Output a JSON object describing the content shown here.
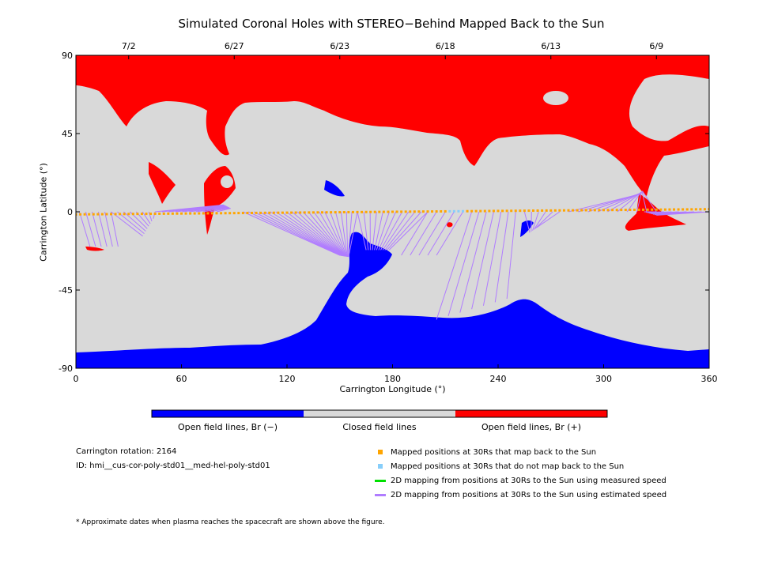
{
  "chart_data": {
    "type": "heatmap",
    "title": "Simulated Coronal Holes with STEREO−Behind Mapped Back to the Sun",
    "xlabel": "Carrington Longitude (°)",
    "ylabel": "Carrington Latitude (°)",
    "xlim": [
      0,
      360
    ],
    "ylim": [
      -90,
      90
    ],
    "x_ticks": [
      0,
      60,
      120,
      180,
      240,
      300,
      360
    ],
    "y_ticks": [
      90,
      45,
      0,
      -45,
      -90
    ],
    "top_axis_dates": [
      {
        "label": "7/2",
        "lon": 30
      },
      {
        "label": "6/27",
        "lon": 90
      },
      {
        "label": "6/23",
        "lon": 150
      },
      {
        "label": "6/18",
        "lon": 210
      },
      {
        "label": "6/13",
        "lon": 270
      },
      {
        "label": "6/9",
        "lon": 330
      }
    ],
    "colors": {
      "open_negative": "#0000ff",
      "closed": "#d9d9d9",
      "open_positive": "#ff0000",
      "mapped": "#ffa500",
      "not_mapped": "#87cefa",
      "measured_speed": "#00e000",
      "estimated_speed": "#b07cff"
    },
    "colorbar_labels": [
      "Open field lines, Br (−)",
      "Closed field lines",
      "Open field lines, Br (+)"
    ],
    "spacecraft_track": {
      "lon_range": [
        0,
        360
      ],
      "lat_range": [
        -1.5,
        1.5
      ],
      "not_mapped_lon_range": [
        212,
        220
      ]
    }
  },
  "info": {
    "rotation": "Carrington rotation: 2164",
    "id": "ID: hmi__cus-cor-poly-std01__med-hel-poly-std01",
    "footnote": "* Approximate dates when plasma reaches the spacecraft are shown above the figure."
  },
  "legend": [
    {
      "label": "Mapped positions at 30Rs that map back to the Sun",
      "kind": "square",
      "color": "#ffa500"
    },
    {
      "label": "Mapped positions at 30Rs that do not map back to the Sun",
      "kind": "square",
      "color": "#87cefa"
    },
    {
      "label": "2D mapping from positions at 30Rs to the Sun using measured speed",
      "kind": "line",
      "color": "#00e000"
    },
    {
      "label": "2D mapping from positions at 30Rs to the Sun using estimated speed",
      "kind": "line",
      "color": "#b07cff"
    }
  ]
}
